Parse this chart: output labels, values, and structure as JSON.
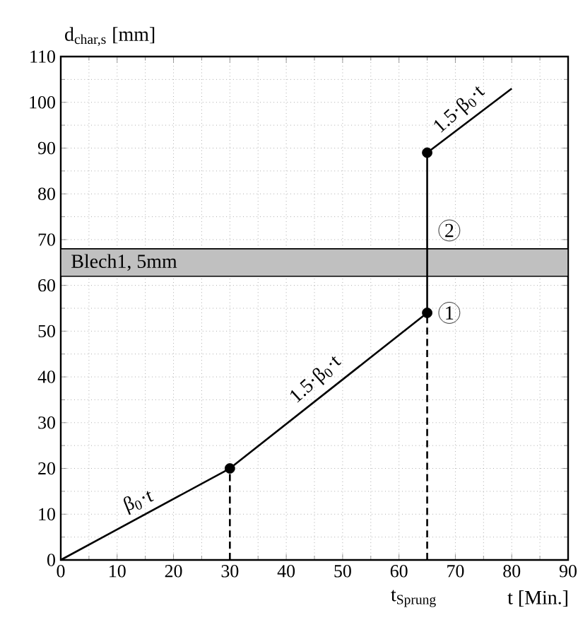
{
  "chart_data": {
    "type": "line",
    "xlabel": "t [Min.]",
    "ylabel": "d$_{char,s}$ [mm]",
    "xlim": [
      0,
      90
    ],
    "ylim": [
      0,
      110
    ],
    "xticks": [
      0,
      10,
      20,
      30,
      40,
      50,
      60,
      70,
      80,
      90
    ],
    "yticks": [
      0,
      10,
      20,
      30,
      40,
      50,
      60,
      70,
      80,
      90,
      100,
      110
    ],
    "grid": true,
    "series": [
      {
        "color": "#000000",
        "x": [
          0,
          30,
          65,
          65,
          80
        ],
        "values": [
          0,
          20,
          54,
          89,
          103
        ]
      },
      {
        "color": "#000000",
        "line_style": "dashed",
        "x": [
          30,
          30
        ],
        "values": [
          0,
          20
        ]
      },
      {
        "color": "#000000",
        "line_style": "dashed",
        "x": [
          65,
          65
        ],
        "values": [
          0,
          54
        ]
      },
      {
        "type": "scatter",
        "color": "#000000",
        "marker": "circle",
        "x": [
          30,
          65,
          65
        ],
        "values": [
          20,
          54,
          89
        ]
      }
    ],
    "bands": [
      {
        "axis": "y",
        "from": 62,
        "to": 68,
        "label": "Blech1, 5mm",
        "color": "#c0c0c0"
      }
    ],
    "annotations": [
      {
        "text": "β$_{0}$·t",
        "x": 15,
        "y": 10
      },
      {
        "text": "1.5·β$_{0}$·t",
        "x": 47,
        "y": 37
      },
      {
        "text": "1.5·β$_{0}$·t",
        "x": 72.5,
        "y": 96
      },
      {
        "text": "1",
        "x": 65,
        "y": 54
      },
      {
        "text": "2",
        "x": 65,
        "y": 72
      },
      {
        "text": "t$_{Sprung}$",
        "x": 65,
        "y": 0
      }
    ]
  }
}
